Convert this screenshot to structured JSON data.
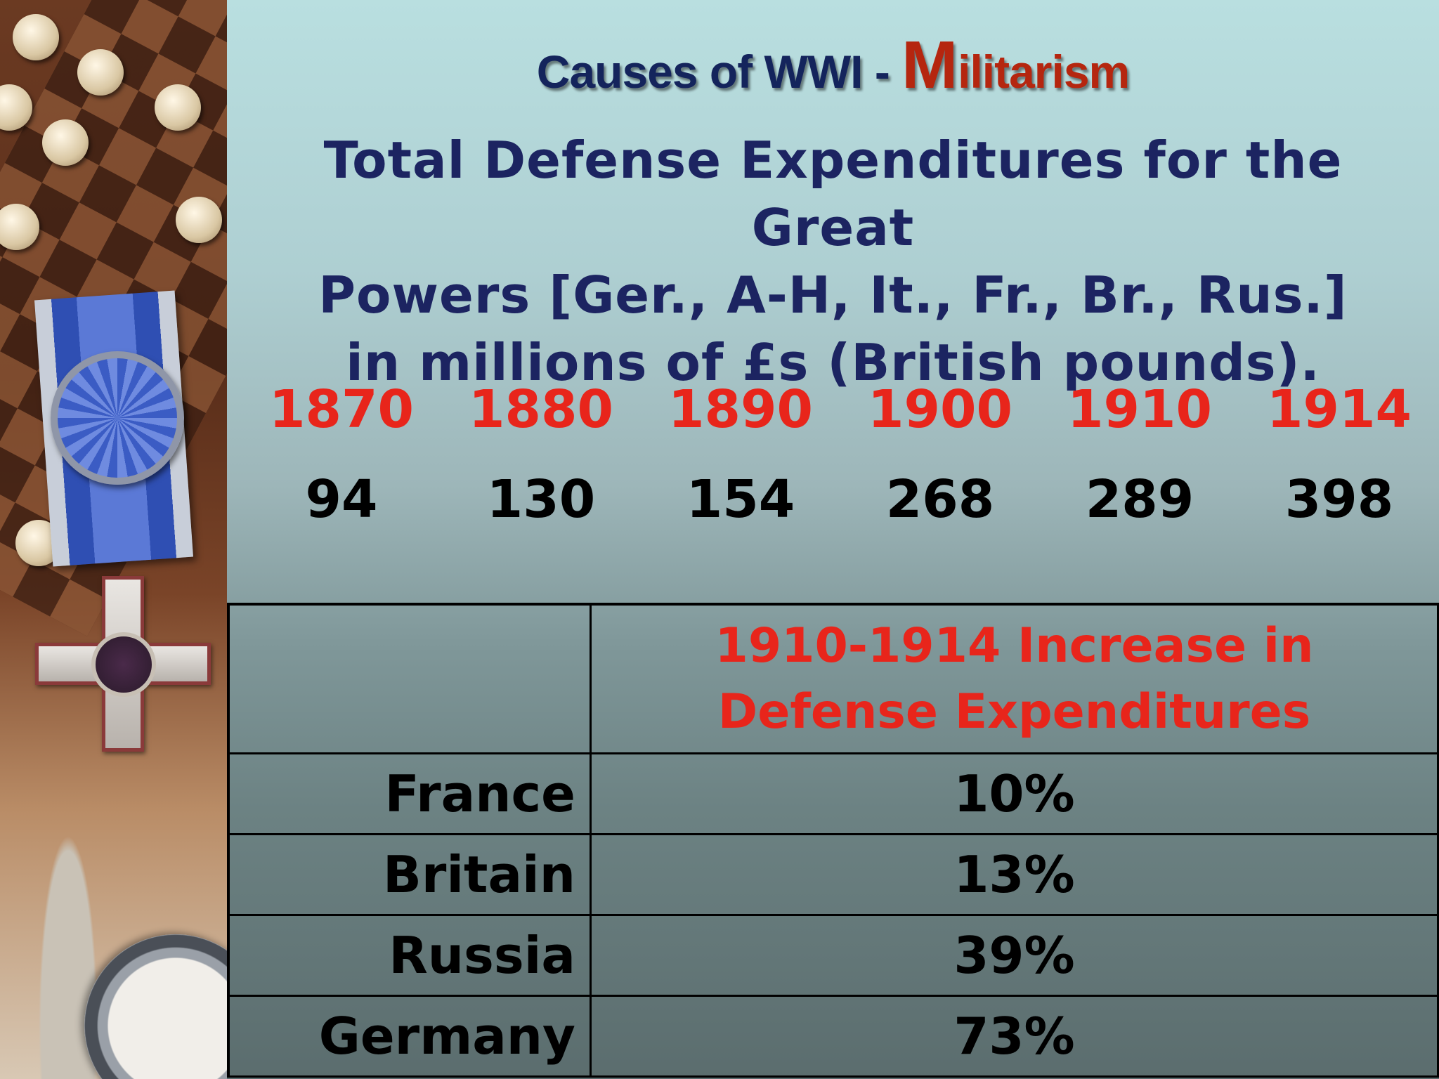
{
  "slide": {
    "title": {
      "prefix": "Causes of WWI - ",
      "accent_initial": "M",
      "accent_rest": "ilitarism"
    },
    "subtitle_lines": [
      "Total Defense Expenditures for the Great",
      "Powers [Ger., A-H, It., Fr., Br., Rus.]",
      "in millions of £s (British pounds)."
    ],
    "expenditures": {
      "years": [
        "1870",
        "1880",
        "1890",
        "1900",
        "1910",
        "1914"
      ],
      "values": [
        "94",
        "130",
        "154",
        "268",
        "289",
        "398"
      ]
    },
    "increase_table": {
      "header_lines": [
        "1910-1914 Increase in",
        "Defense Expenditures"
      ],
      "rows": [
        {
          "country": "France",
          "increase": "10%"
        },
        {
          "country": "Britain",
          "increase": "13%"
        },
        {
          "country": "Russia",
          "increase": "39%"
        },
        {
          "country": "Germany",
          "increase": "73%"
        }
      ]
    }
  },
  "colors": {
    "title": "#14245c",
    "accent": "#b5260f",
    "subtitle": "#1c2461",
    "year": "#e8251b",
    "header": "#e8251b"
  }
}
